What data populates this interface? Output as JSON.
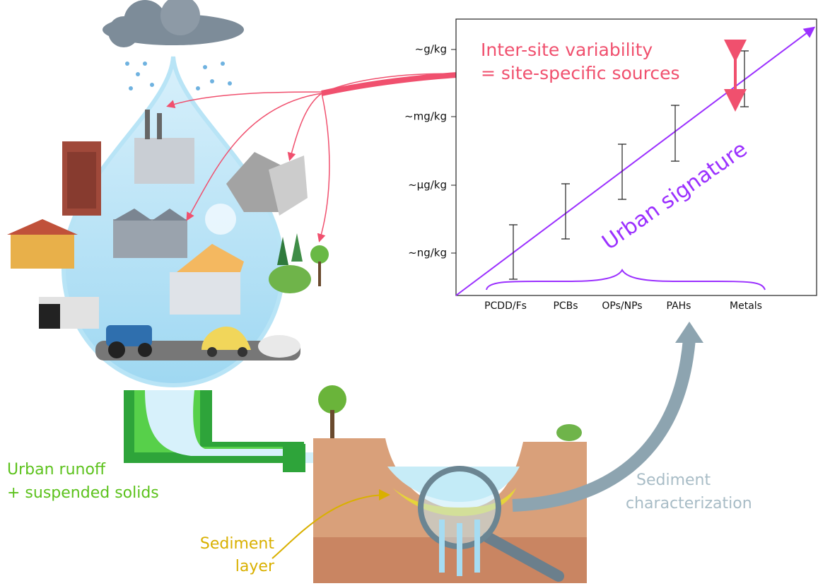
{
  "chart": {
    "y_labels": [
      "~g/kg",
      "~mg/kg",
      "~µg/kg",
      "~ng/kg"
    ],
    "categories": [
      "PCDD/Fs",
      "PCBs",
      "OPs/NPs",
      "PAHs",
      "Metals"
    ],
    "annotations": {
      "variability": [
        "Inter-site variability",
        "= site-specific sources"
      ],
      "signature": "Urban signature"
    }
  },
  "labels": {
    "runoff": [
      "Urban runoff",
      "+ suspended solids"
    ],
    "sediment_layer": [
      "Sediment",
      "layer"
    ],
    "characterization": [
      "Sediment",
      "characterization"
    ]
  }
}
